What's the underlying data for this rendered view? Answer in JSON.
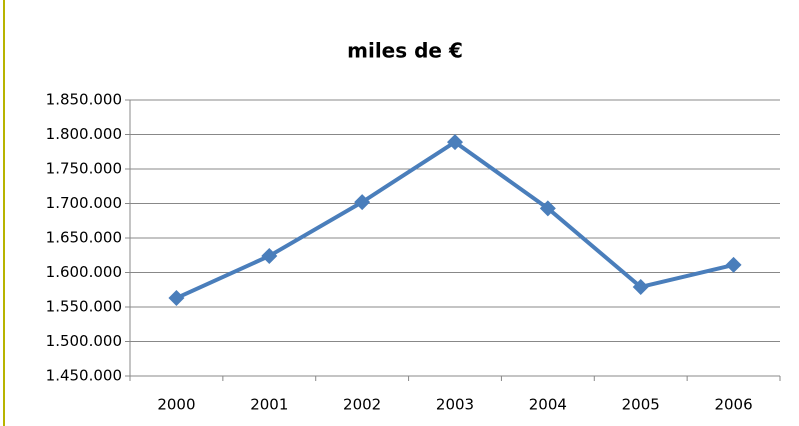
{
  "chart_data": {
    "type": "line",
    "title": "miles de €",
    "categories": [
      "2000",
      "2001",
      "2002",
      "2003",
      "2004",
      "2005",
      "2006"
    ],
    "series": [
      {
        "name": "miles de €",
        "color": "#4a7ebb",
        "values": [
          1563000,
          1624000,
          1702000,
          1789000,
          1693000,
          1579000,
          1611000
        ]
      }
    ],
    "ylim": [
      1450000,
      1850000
    ],
    "yticks": [
      {
        "value": 1450000,
        "label": "1.450.000"
      },
      {
        "value": 1500000,
        "label": "1.500.000"
      },
      {
        "value": 1550000,
        "label": "1.550.000"
      },
      {
        "value": 1600000,
        "label": "1.600.000"
      },
      {
        "value": 1650000,
        "label": "1.650.000"
      },
      {
        "value": 1700000,
        "label": "1.700.000"
      },
      {
        "value": 1750000,
        "label": "1.750.000"
      },
      {
        "value": 1800000,
        "label": "1.800.000"
      },
      {
        "value": 1850000,
        "label": "1.850.000"
      }
    ],
    "grid": true
  }
}
